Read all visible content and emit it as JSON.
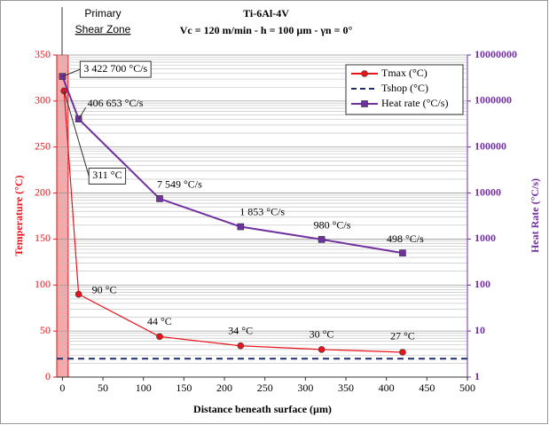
{
  "chart_data": {
    "type": "line",
    "title": "Ti-6Al-4V",
    "subtitle": "Vc = 120 m/min - h = 100 µm - γn = 0°",
    "x_label": "Distance beneath surface (µm)",
    "y_label": "Temperature (°C)",
    "y2_label": "Heat Rate (°C/s)",
    "xlim": [
      -7,
      500
    ],
    "xticks": [
      0,
      50,
      100,
      150,
      200,
      250,
      300,
      350,
      400,
      450,
      500
    ],
    "ylim": [
      0,
      350
    ],
    "yticks": [
      0,
      50,
      100,
      150,
      200,
      250,
      300,
      350
    ],
    "y2lim": [
      1,
      10000000
    ],
    "y2ticks": [
      1,
      10,
      100,
      1000,
      10000,
      100000,
      1000000,
      10000000
    ],
    "y2_log": true,
    "grid": true,
    "legend": "top-right",
    "shear_zone": {
      "label_lines": [
        "Primary",
        "Shear Zone"
      ],
      "x": [
        -7,
        7
      ],
      "color": "#f4aaaa"
    },
    "series": [
      {
        "name": "Tmax (°C)",
        "color": "#e8141c",
        "marker": "circle",
        "x": [
          2,
          20,
          120,
          220,
          320,
          420
        ],
        "values": [
          311,
          90,
          44,
          34,
          30,
          27
        ],
        "value_labels": [
          "311 °C",
          "90 °C",
          "44 °C",
          "34 °C",
          "30 °C",
          "27 °C"
        ]
      },
      {
        "name": "Tshop (°C)",
        "color": "#1f2f6b",
        "dashed": true,
        "x": [
          -7,
          500
        ],
        "values": [
          20,
          20
        ]
      },
      {
        "name": "Heat rate (°C/s)",
        "color": "#7030a0",
        "marker": "square",
        "axis": "y2",
        "x": [
          0,
          20,
          120,
          220,
          320,
          420
        ],
        "values": [
          3422700,
          406653,
          7549,
          1853,
          980,
          498
        ],
        "value_labels": [
          "3 422 700 °C/s",
          "406 653 °C/s",
          "7 549 °C/s",
          "1 853 °C/s",
          "980 °C/s",
          "498 °C/s"
        ]
      }
    ]
  }
}
